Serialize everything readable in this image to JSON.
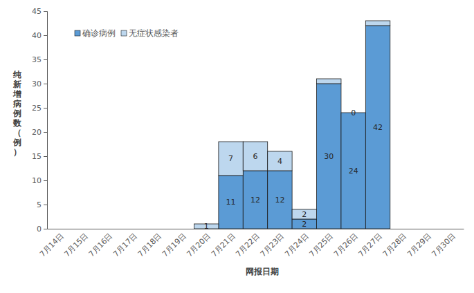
{
  "chart_data": {
    "type": "bar",
    "x_label": "网报日期",
    "y_label": "纯新增病例数（例）",
    "categories": [
      "7月14日",
      "7月15日",
      "7月16日",
      "7月17日",
      "7月18日",
      "7月19日",
      "7月20日",
      "7月21日",
      "7月22日",
      "7月23日",
      "7月24日",
      "7月25日",
      "7月26日",
      "7月27日",
      "7月28日",
      "7月29日",
      "7月30日"
    ],
    "series": [
      {
        "name": "确诊病例",
        "color": "#5b9bd5",
        "values": [
          0,
          0,
          0,
          0,
          0,
          0,
          0,
          11,
          12,
          12,
          2,
          30,
          24,
          42,
          0,
          0,
          0
        ],
        "value_labels": [
          null,
          null,
          null,
          null,
          null,
          null,
          null,
          "11",
          "12",
          "12",
          "2",
          "30",
          "24",
          "42",
          null,
          null,
          null
        ]
      },
      {
        "name": "无症状感染者",
        "color": "#bdd7ee",
        "values": [
          0,
          0,
          0,
          0,
          0,
          0,
          1,
          7,
          6,
          4,
          2,
          1,
          0,
          1,
          0,
          0,
          0
        ],
        "value_labels": [
          null,
          null,
          null,
          null,
          null,
          null,
          "1",
          "7",
          "6",
          "4",
          "2",
          null,
          "0",
          null,
          null,
          null,
          null
        ]
      }
    ],
    "ylim": [
      0,
      45
    ],
    "yticks": [
      0,
      5,
      10,
      15,
      20,
      25,
      30,
      35,
      40,
      45
    ],
    "stacked": true,
    "data_labels": true,
    "legend": "top-left",
    "grid": false
  }
}
